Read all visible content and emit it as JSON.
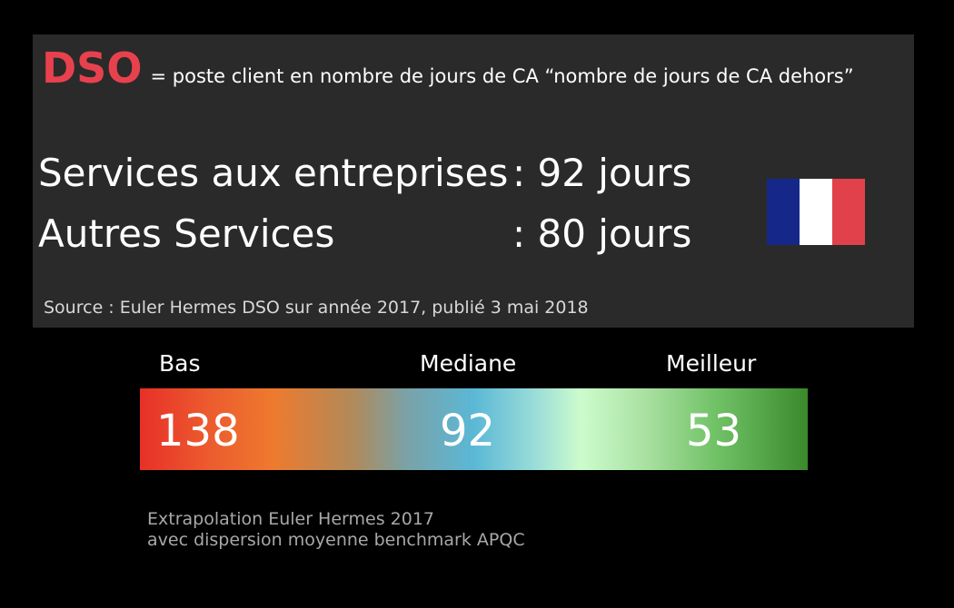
{
  "header": {
    "acronym": "DSO",
    "definition": "= poste client en nombre de jours de CA “nombre de jours de CA dehors”"
  },
  "rows": [
    {
      "label": "Services aux entreprises",
      "value": ": 92 jours"
    },
    {
      "label": "Autres Services",
      "value": ": 80 jours"
    }
  ],
  "flag": {
    "icon": "france-flag-icon",
    "colors": [
      "#15288a",
      "#ffffff",
      "#e0414a"
    ]
  },
  "source": "Source  : Euler Hermes DSO sur année 2017, publié 3 mai 2018",
  "scale": {
    "labels": {
      "low": "Bas",
      "median": "Mediane",
      "best": "Meilleur"
    },
    "values": {
      "low": "138",
      "median": "92",
      "best": "53"
    },
    "colors": {
      "low": "#e83028",
      "median": "#5ab8d6",
      "best": "#3a8a2c"
    }
  },
  "footnote": {
    "line1": "Extrapolation Euler Hermes 2017",
    "line2": "avec dispersion moyenne benchmark APQC"
  },
  "colors": {
    "accent": "#e8414e",
    "panel": "#2a2a2a",
    "background": "#000000"
  }
}
